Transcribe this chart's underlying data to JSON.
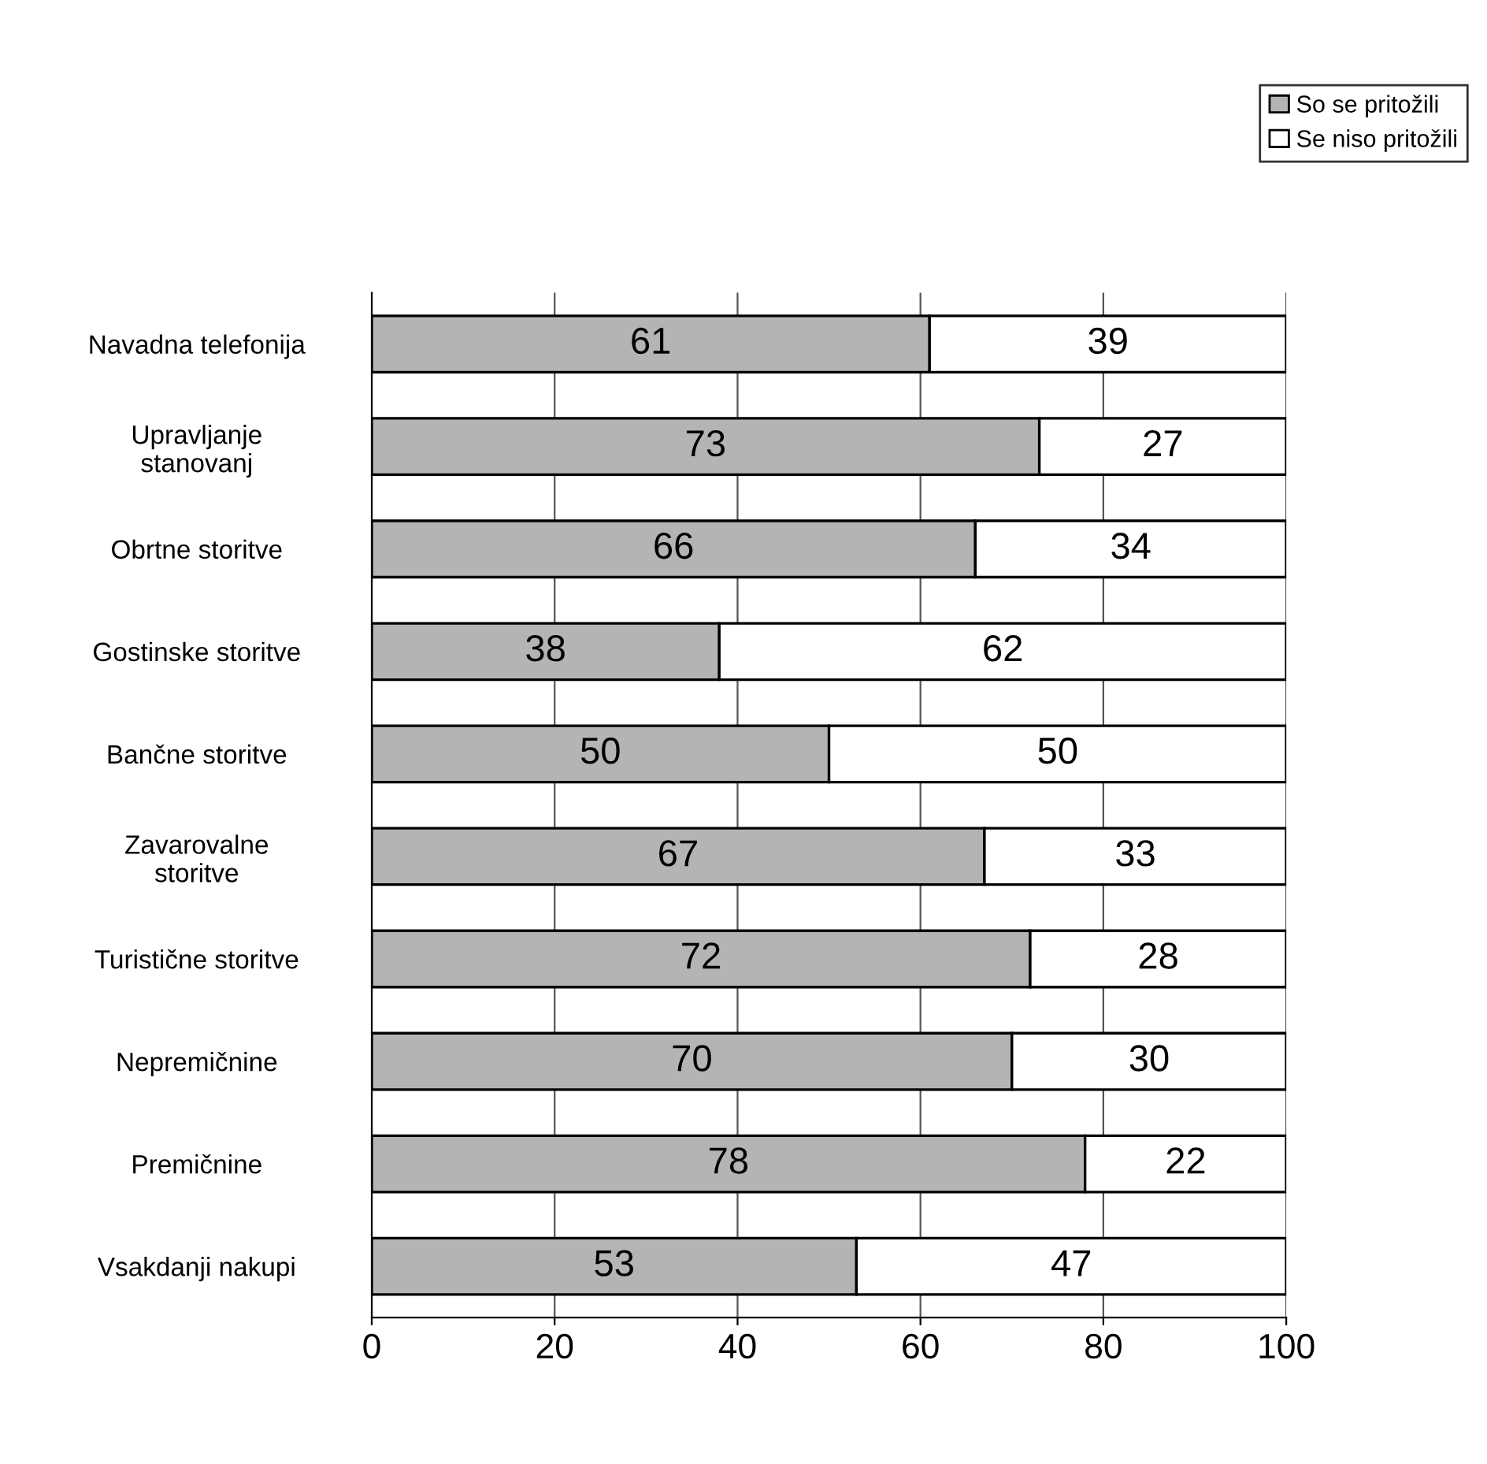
{
  "chart_data": {
    "type": "bar",
    "orientation": "horizontal",
    "stacked": true,
    "categories": [
      "Navadna telefonija",
      "Upravljanje\nstanovanj",
      "Obrtne storitve",
      "Gostinske storitve",
      "Bančne storitve",
      "Zavarovalne\nstoritve",
      "Turistične storitve",
      "Nepremičnine",
      "Premičnine",
      "Vsakdanji nakupi"
    ],
    "series": [
      {
        "name": "So se pritožili",
        "color": "#b4b4b4",
        "values": [
          61,
          73,
          66,
          38,
          50,
          67,
          72,
          70,
          78,
          53
        ]
      },
      {
        "name": "Se niso pritožili",
        "color": "#ffffff",
        "values": [
          39,
          27,
          34,
          62,
          50,
          33,
          28,
          30,
          22,
          47
        ]
      }
    ],
    "xlim": [
      0,
      100
    ],
    "xticks": [
      0,
      20,
      40,
      60,
      80,
      100
    ],
    "grid": "x",
    "legend": "top right",
    "data_labels": true
  }
}
